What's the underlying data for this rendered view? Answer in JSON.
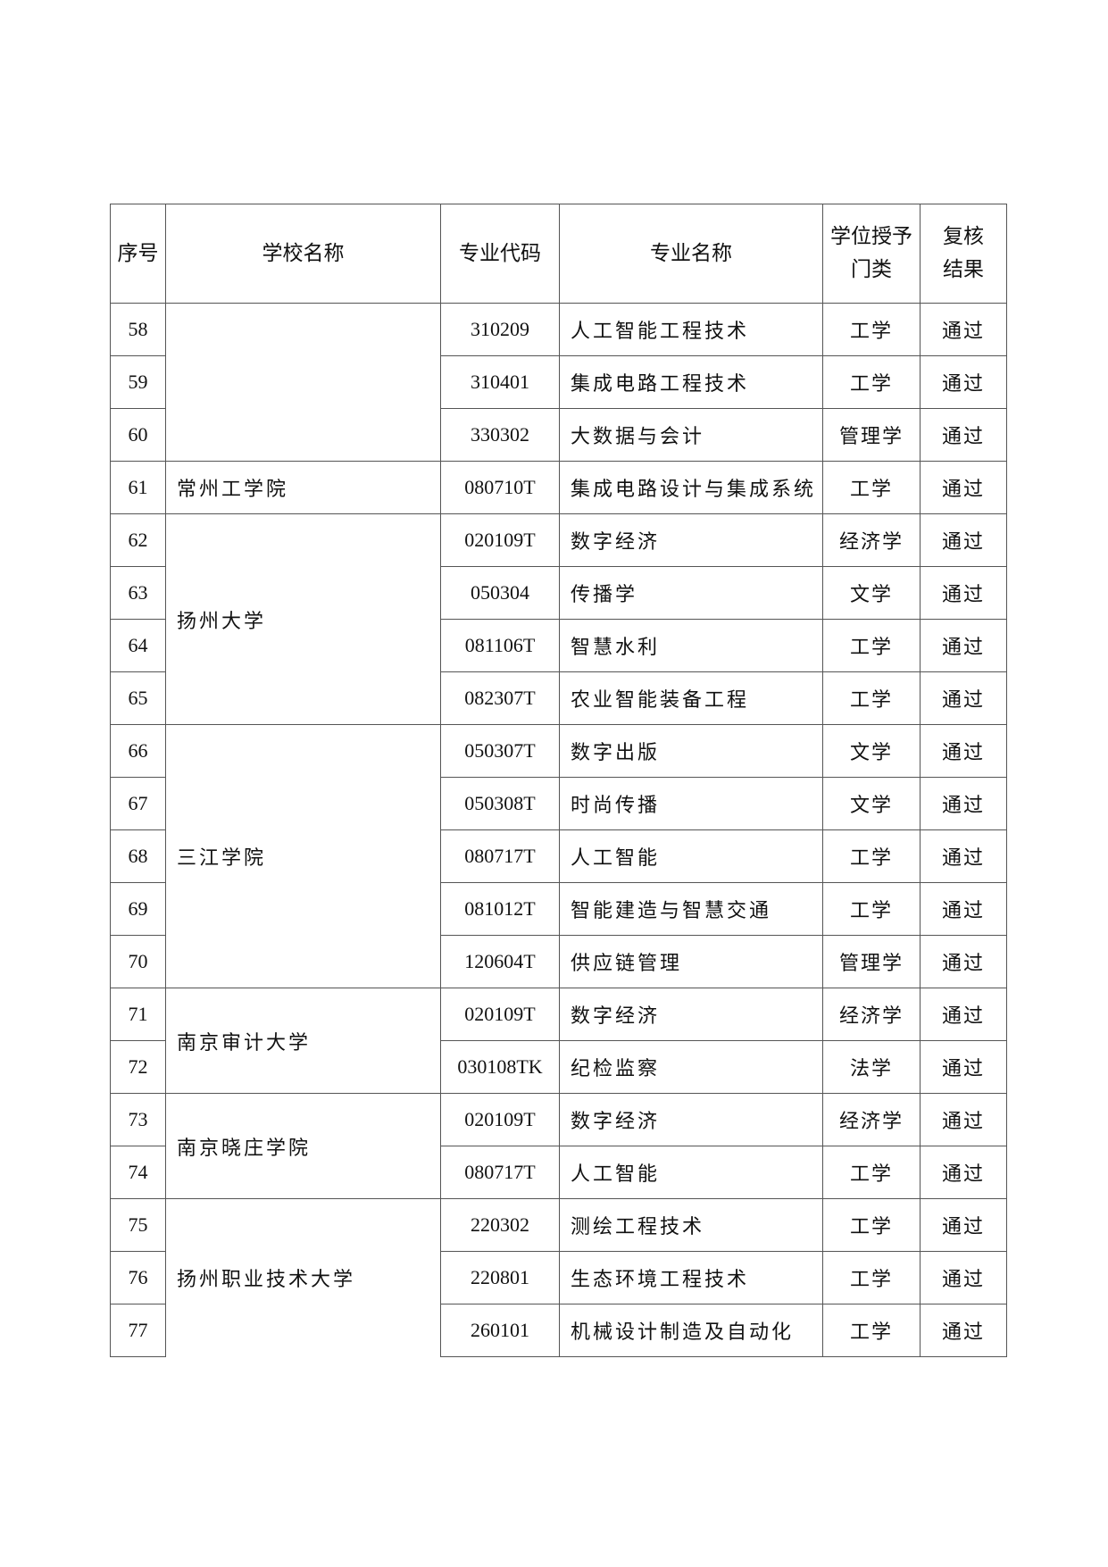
{
  "headers": {
    "seq": "序号",
    "school": "学校名称",
    "code": "专业代码",
    "major": "专业名称",
    "degree_line1": "学位授予",
    "degree_line2": "门类",
    "result_line1": "复核",
    "result_line2": "结果"
  },
  "groups": [
    {
      "school": "",
      "rows": [
        {
          "seq": "58",
          "code": "310209",
          "major": "人工智能工程技术",
          "degree": "工学",
          "result": "通过"
        },
        {
          "seq": "59",
          "code": "310401",
          "major": "集成电路工程技术",
          "degree": "工学",
          "result": "通过"
        },
        {
          "seq": "60",
          "code": "330302",
          "major": "大数据与会计",
          "degree": "管理学",
          "result": "通过"
        }
      ]
    },
    {
      "school": "常州工学院",
      "rows": [
        {
          "seq": "61",
          "code": "080710T",
          "major": "集成电路设计与集成系统",
          "degree": "工学",
          "result": "通过"
        }
      ]
    },
    {
      "school": "扬州大学",
      "rows": [
        {
          "seq": "62",
          "code": "020109T",
          "major": "数字经济",
          "degree": "经济学",
          "result": "通过"
        },
        {
          "seq": "63",
          "code": "050304",
          "major": "传播学",
          "degree": "文学",
          "result": "通过"
        },
        {
          "seq": "64",
          "code": "081106T",
          "major": "智慧水利",
          "degree": "工学",
          "result": "通过"
        },
        {
          "seq": "65",
          "code": "082307T",
          "major": "农业智能装备工程",
          "degree": "工学",
          "result": "通过"
        }
      ]
    },
    {
      "school": "三江学院",
      "rows": [
        {
          "seq": "66",
          "code": "050307T",
          "major": "数字出版",
          "degree": "文学",
          "result": "通过"
        },
        {
          "seq": "67",
          "code": "050308T",
          "major": "时尚传播",
          "degree": "文学",
          "result": "通过"
        },
        {
          "seq": "68",
          "code": "080717T",
          "major": "人工智能",
          "degree": "工学",
          "result": "通过"
        },
        {
          "seq": "69",
          "code": "081012T",
          "major": "智能建造与智慧交通",
          "degree": "工学",
          "result": "通过"
        },
        {
          "seq": "70",
          "code": "120604T",
          "major": "供应链管理",
          "degree": "管理学",
          "result": "通过"
        }
      ]
    },
    {
      "school": "南京审计大学",
      "rows": [
        {
          "seq": "71",
          "code": "020109T",
          "major": "数字经济",
          "degree": "经济学",
          "result": "通过"
        },
        {
          "seq": "72",
          "code": "030108TK",
          "major": "纪检监察",
          "degree": "法学",
          "result": "通过"
        }
      ]
    },
    {
      "school": "南京晓庄学院",
      "rows": [
        {
          "seq": "73",
          "code": "020109T",
          "major": "数字经济",
          "degree": "经济学",
          "result": "通过"
        },
        {
          "seq": "74",
          "code": "080717T",
          "major": "人工智能",
          "degree": "工学",
          "result": "通过"
        }
      ]
    },
    {
      "school": "扬州职业技术大学",
      "rows": [
        {
          "seq": "75",
          "code": "220302",
          "major": "测绘工程技术",
          "degree": "工学",
          "result": "通过"
        },
        {
          "seq": "76",
          "code": "220801",
          "major": "生态环境工程技术",
          "degree": "工学",
          "result": "通过"
        },
        {
          "seq": "77",
          "code": "260101",
          "major": "机械设计制造及自动化",
          "degree": "工学",
          "result": "通过"
        }
      ]
    }
  ]
}
